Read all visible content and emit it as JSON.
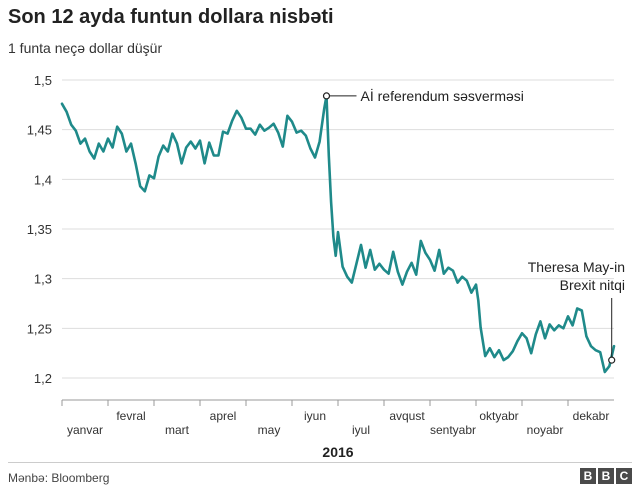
{
  "header": {
    "title": "Son 12 ayda funtun dollara nisbəti",
    "subtitle": "1 funta neçə dollar düşür"
  },
  "footer": {
    "source": "Mənbə: Bloomberg",
    "logo_letters": [
      "B",
      "B",
      "C"
    ]
  },
  "colors": {
    "line": "#1f8a8a",
    "grid": "#dddddd",
    "axis_text": "#333333"
  },
  "chart_data": {
    "type": "line",
    "xlabel": "2016",
    "ylabel": "",
    "ylim": [
      1.2,
      1.5
    ],
    "yticks": [
      {
        "value": 1.2,
        "label": "1,2"
      },
      {
        "value": 1.25,
        "label": "1,25"
      },
      {
        "value": 1.3,
        "label": "1,3"
      },
      {
        "value": 1.35,
        "label": "1,35"
      },
      {
        "value": 1.4,
        "label": "1,4"
      },
      {
        "value": 1.45,
        "label": "1,45"
      },
      {
        "value": 1.5,
        "label": "1,5"
      }
    ],
    "x_range": [
      0,
      12
    ],
    "months": [
      "yanvar",
      "fevral",
      "mart",
      "aprel",
      "may",
      "iyun",
      "iyul",
      "avqust",
      "sentyabr",
      "oktyabr",
      "noyabr",
      "dekabr"
    ],
    "series": [
      {
        "x": [
          0.0,
          0.1,
          0.2,
          0.3,
          0.4,
          0.5,
          0.6,
          0.7,
          0.8,
          0.9,
          1.0,
          1.1,
          1.2,
          1.3,
          1.4,
          1.5,
          1.6,
          1.7,
          1.8,
          1.9,
          2.0,
          2.1,
          2.2,
          2.3,
          2.4,
          2.5,
          2.6,
          2.7,
          2.8,
          2.9,
          3.0,
          3.1,
          3.2,
          3.3,
          3.4,
          3.5,
          3.6,
          3.7,
          3.8,
          3.9,
          4.0,
          4.1,
          4.2,
          4.3,
          4.4,
          4.5,
          4.6,
          4.7,
          4.8,
          4.9,
          5.0,
          5.1,
          5.2,
          5.3,
          5.4,
          5.5,
          5.6,
          5.7,
          5.75,
          5.8,
          5.85,
          5.9,
          5.95,
          6.0,
          6.1,
          6.2,
          6.3,
          6.4,
          6.5,
          6.6,
          6.7,
          6.8,
          6.9,
          7.0,
          7.1,
          7.2,
          7.3,
          7.4,
          7.5,
          7.6,
          7.7,
          7.8,
          7.9,
          8.0,
          8.1,
          8.2,
          8.3,
          8.4,
          8.5,
          8.6,
          8.7,
          8.8,
          8.9,
          9.0,
          9.05,
          9.1,
          9.2,
          9.3,
          9.4,
          9.5,
          9.6,
          9.7,
          9.8,
          9.9,
          10.0,
          10.1,
          10.2,
          10.3,
          10.4,
          10.5,
          10.6,
          10.7,
          10.8,
          10.9,
          11.0,
          11.1,
          11.2,
          11.3,
          11.4,
          11.5,
          11.6,
          11.7,
          11.8
        ],
        "values": [
          1.476,
          1.468,
          1.455,
          1.449,
          1.436,
          1.441,
          1.428,
          1.421,
          1.436,
          1.428,
          1.441,
          1.432,
          1.453,
          1.446,
          1.428,
          1.436,
          1.416,
          1.393,
          1.388,
          1.404,
          1.401,
          1.423,
          1.434,
          1.428,
          1.446,
          1.436,
          1.416,
          1.432,
          1.438,
          1.431,
          1.439,
          1.416,
          1.437,
          1.424,
          1.424,
          1.448,
          1.446,
          1.459,
          1.469,
          1.462,
          1.451,
          1.451,
          1.445,
          1.455,
          1.449,
          1.452,
          1.456,
          1.447,
          1.433,
          1.464,
          1.458,
          1.447,
          1.449,
          1.444,
          1.431,
          1.422,
          1.438,
          1.471,
          1.484,
          1.424,
          1.377,
          1.342,
          1.323,
          1.347,
          1.312,
          1.302,
          1.296,
          1.315,
          1.334,
          1.311,
          1.329,
          1.309,
          1.315,
          1.309,
          1.305,
          1.327,
          1.307,
          1.294,
          1.307,
          1.316,
          1.304,
          1.338,
          1.326,
          1.319,
          1.308,
          1.329,
          1.305,
          1.311,
          1.308,
          1.296,
          1.302,
          1.298,
          1.286,
          1.294,
          1.278,
          1.251,
          1.222,
          1.23,
          1.221,
          1.228,
          1.218,
          1.221,
          1.227,
          1.237,
          1.245,
          1.24,
          1.225,
          1.244,
          1.257,
          1.24,
          1.254,
          1.248,
          1.253,
          1.25,
          1.262,
          1.253,
          1.27,
          1.268,
          1.242,
          1.232,
          1.228,
          1.226,
          1.206
        ]
      }
    ],
    "x_extra": [
      11.9,
      12.0
    ],
    "values_extra": [
      1.212,
      1.232
    ],
    "annotations": [
      {
        "label": "Aİ referendum səsverməsi",
        "x": 5.75,
        "value": 1.484
      },
      {
        "label": "Theresa May-in Brexit nitqi",
        "x": 11.95,
        "value": 1.218
      }
    ]
  }
}
